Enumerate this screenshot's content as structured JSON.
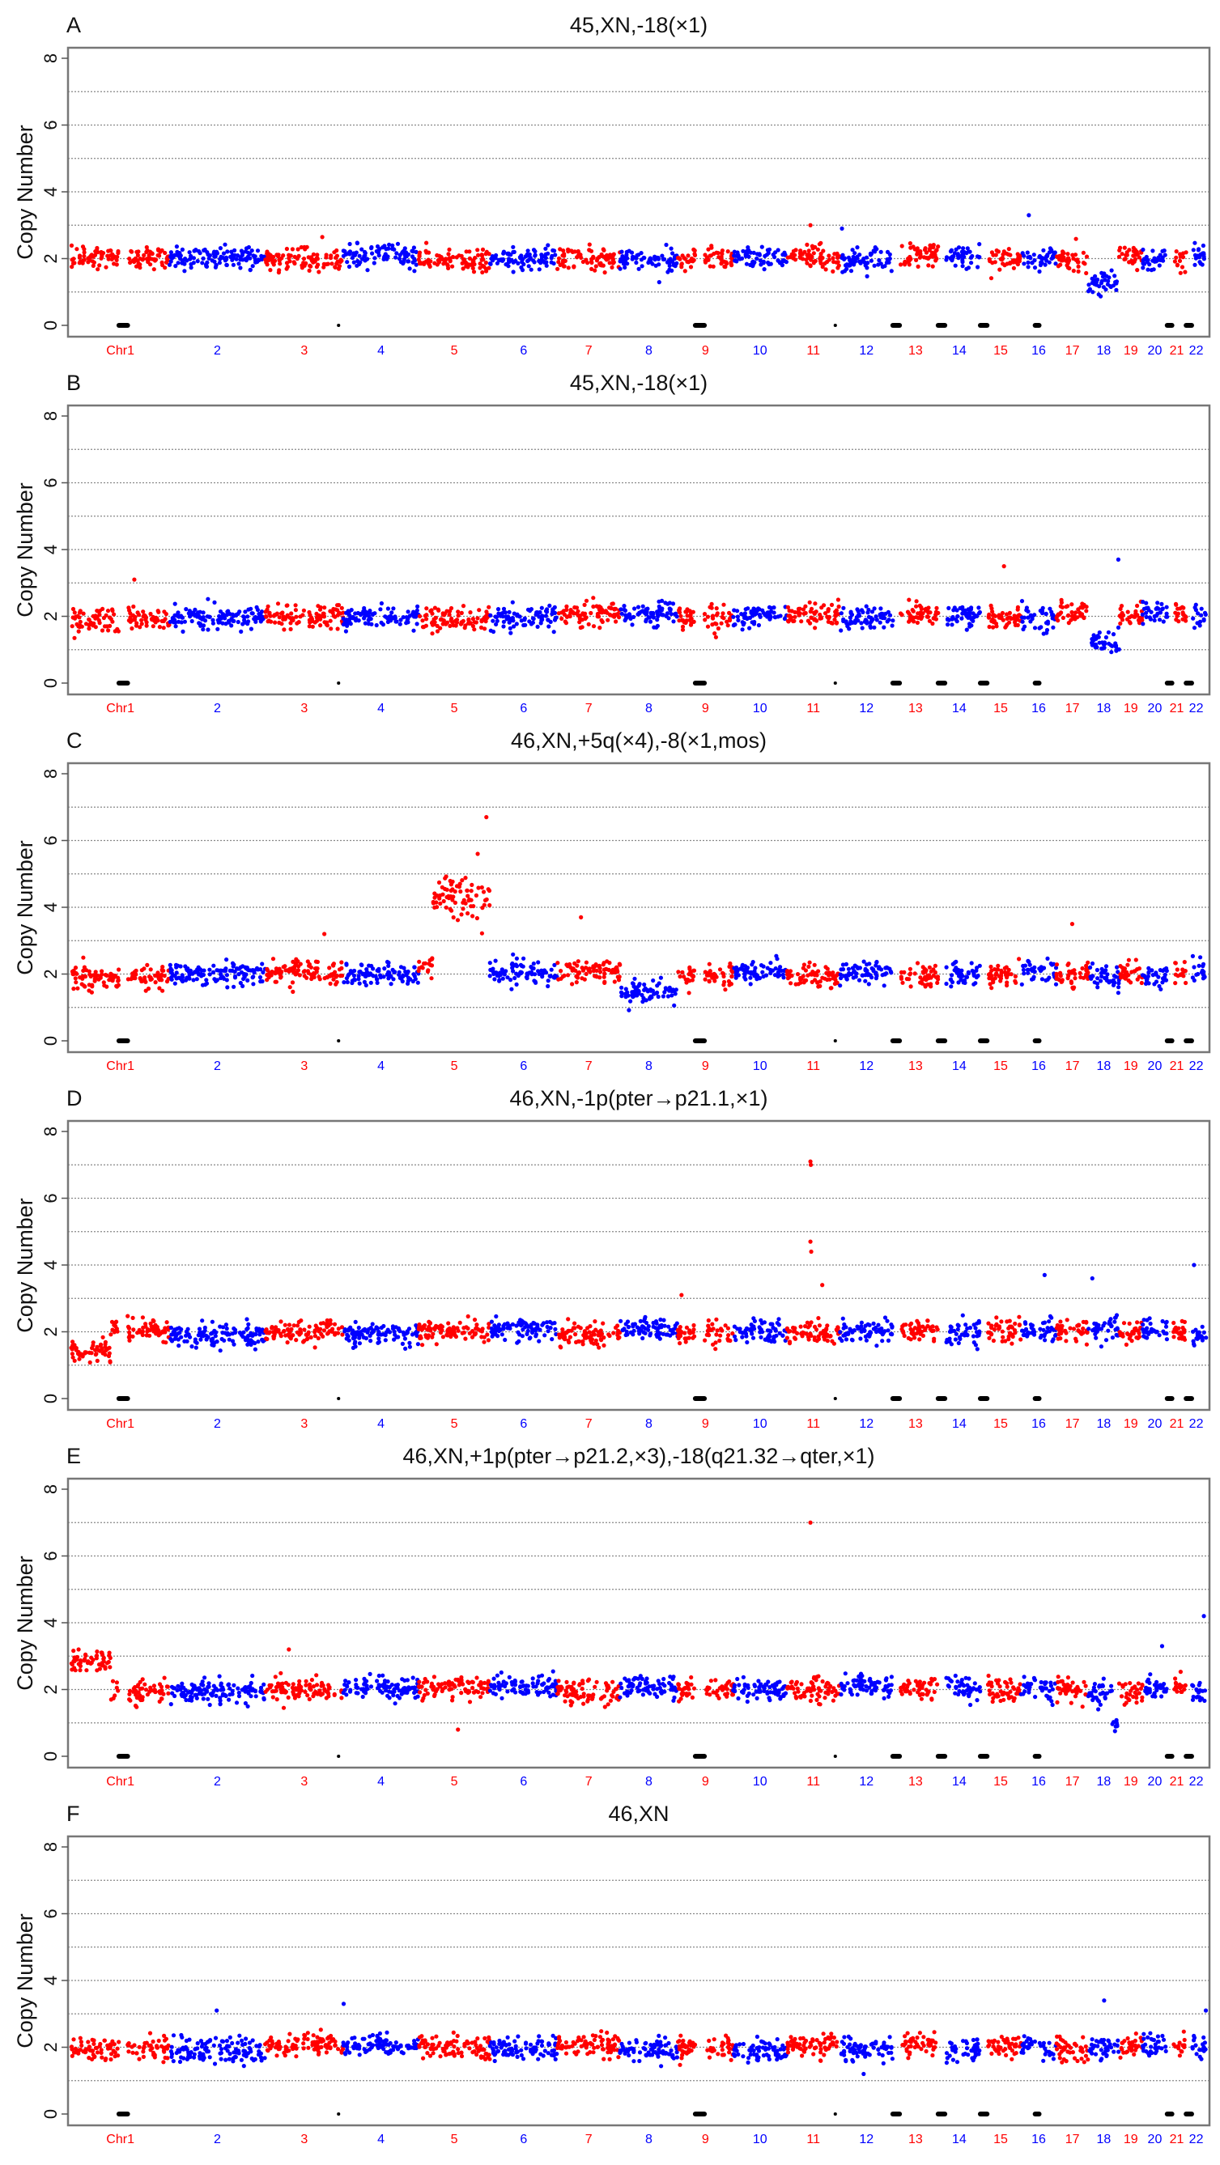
{
  "chart_data": {
    "type": "scatter",
    "ylabel": "Copy Number",
    "yticks": [
      "0",
      "2",
      "4",
      "6",
      "8"
    ],
    "ylim": [
      -0.3,
      8.3
    ],
    "gridlines": [
      1,
      2,
      3,
      4,
      5,
      6,
      7
    ],
    "grid": true,
    "colors": {
      "odd_chromosome": "#ff0000",
      "even_chromosome": "#0000ff",
      "gap_marker": "#000000"
    },
    "chromosomes": [
      {
        "label": "Chr1",
        "size_mb": 249
      },
      {
        "label": "2",
        "size_mb": 243
      },
      {
        "label": "3",
        "size_mb": 198
      },
      {
        "label": "4",
        "size_mb": 191
      },
      {
        "label": "5",
        "size_mb": 181
      },
      {
        "label": "6",
        "size_mb": 171
      },
      {
        "label": "7",
        "size_mb": 159
      },
      {
        "label": "8",
        "size_mb": 146
      },
      {
        "label": "9",
        "size_mb": 141
      },
      {
        "label": "10",
        "size_mb": 136
      },
      {
        "label": "11",
        "size_mb": 135
      },
      {
        "label": "12",
        "size_mb": 134
      },
      {
        "label": "13",
        "size_mb": 115
      },
      {
        "label": "14",
        "size_mb": 107
      },
      {
        "label": "15",
        "size_mb": 103
      },
      {
        "label": "16",
        "size_mb": 90
      },
      {
        "label": "17",
        "size_mb": 81
      },
      {
        "label": "18",
        "size_mb": 78
      },
      {
        "label": "19",
        "size_mb": 59
      },
      {
        "label": "20",
        "size_mb": 63
      },
      {
        "label": "21",
        "size_mb": 48
      },
      {
        "label": "22",
        "size_mb": 51
      }
    ],
    "gap_markers": [
      {
        "chr": 1,
        "start_mb": 121,
        "end_mb": 143
      },
      {
        "chr": 3,
        "start_mb": 186,
        "end_mb": 186
      },
      {
        "chr": 9,
        "start_mb": 45,
        "end_mb": 68
      },
      {
        "chr": 11,
        "start_mb": 123,
        "end_mb": 123
      },
      {
        "chr": 13,
        "start_mb": 0,
        "end_mb": 17
      },
      {
        "chr": 14,
        "start_mb": 0,
        "end_mb": 17
      },
      {
        "chr": 15,
        "start_mb": 0,
        "end_mb": 17
      },
      {
        "chr": 16,
        "start_mb": 36,
        "end_mb": 46
      },
      {
        "chr": 21,
        "start_mb": 0,
        "end_mb": 12
      },
      {
        "chr": 22,
        "start_mb": 0,
        "end_mb": 14
      }
    ],
    "baseline_copy_number": 2,
    "panels": [
      {
        "letter": "A",
        "title": "45,XN,-18(×1)",
        "segments": [
          {
            "chr": 18,
            "start_mb": 0,
            "end_mb": 78,
            "copy_number": 1.2
          }
        ],
        "outliers": [
          {
            "chr": 11,
            "mb": 60,
            "cn": 3.0
          },
          {
            "chr": 16,
            "mb": 20,
            "cn": 3.3
          },
          {
            "chr": 12,
            "mb": 5,
            "cn": 2.9
          }
        ]
      },
      {
        "letter": "B",
        "title": "45,XN,-18(×1)",
        "segments": [
          {
            "chr": 18,
            "start_mb": 0,
            "end_mb": 78,
            "copy_number": 1.2
          }
        ],
        "outliers": [
          {
            "chr": 15,
            "mb": 60,
            "cn": 3.5
          },
          {
            "chr": 18,
            "mb": 76,
            "cn": 3.7
          },
          {
            "chr": 1,
            "mb": 160,
            "cn": 3.1
          }
        ]
      },
      {
        "letter": "C",
        "title": "46,XN,+5q(×4),-8(×1,mos)",
        "segments": [
          {
            "chr": 5,
            "start_mb": 0,
            "end_mb": 35,
            "copy_number": 2.3
          },
          {
            "chr": 5,
            "start_mb": 35,
            "end_mb": 181,
            "copy_number": 4.3
          },
          {
            "chr": 8,
            "start_mb": 0,
            "end_mb": 146,
            "copy_number": 1.45
          }
        ],
        "outliers": [
          {
            "chr": 5,
            "mb": 172,
            "cn": 6.7
          },
          {
            "chr": 5,
            "mb": 150,
            "cn": 5.6
          },
          {
            "chr": 7,
            "mb": 60,
            "cn": 3.7
          },
          {
            "chr": 17,
            "mb": 40,
            "cn": 3.5
          },
          {
            "chr": 3,
            "mb": 150,
            "cn": 3.2
          }
        ]
      },
      {
        "letter": "D",
        "title": "46,XN,-1p(pter→p21.1,×1)",
        "segments": [
          {
            "chr": 1,
            "start_mb": 0,
            "end_mb": 100,
            "copy_number": 1.4
          }
        ],
        "outliers": [
          {
            "chr": 11,
            "mb": 60,
            "cn": 7.1
          },
          {
            "chr": 11,
            "mb": 61,
            "cn": 7.0
          },
          {
            "chr": 11,
            "mb": 60,
            "cn": 4.7
          },
          {
            "chr": 11,
            "mb": 62,
            "cn": 4.4
          },
          {
            "chr": 11,
            "mb": 90,
            "cn": 3.4
          },
          {
            "chr": 22,
            "mb": 20,
            "cn": 4.0
          },
          {
            "chr": 16,
            "mb": 60,
            "cn": 3.7
          },
          {
            "chr": 18,
            "mb": 10,
            "cn": 3.6
          },
          {
            "chr": 9,
            "mb": 10,
            "cn": 3.1
          }
        ]
      },
      {
        "letter": "E",
        "title": "46,XN,+1p(pter→p21.2,×3),-18(q21.32→qter,×1)",
        "segments": [
          {
            "chr": 1,
            "start_mb": 0,
            "end_mb": 100,
            "copy_number": 2.85
          },
          {
            "chr": 18,
            "start_mb": 60,
            "end_mb": 78,
            "copy_number": 1.0
          }
        ],
        "outliers": [
          {
            "chr": 11,
            "mb": 60,
            "cn": 7.0
          },
          {
            "chr": 22,
            "mb": 45,
            "cn": 4.2
          },
          {
            "chr": 20,
            "mb": 50,
            "cn": 3.3
          },
          {
            "chr": 3,
            "mb": 60,
            "cn": 3.2
          },
          {
            "chr": 5,
            "mb": 100,
            "cn": 0.8
          }
        ]
      },
      {
        "letter": "F",
        "title": "46,XN",
        "segments": [],
        "outliers": [
          {
            "chr": 4,
            "mb": 1,
            "cn": 3.3
          },
          {
            "chr": 2,
            "mb": 120,
            "cn": 3.1
          },
          {
            "chr": 18,
            "mb": 40,
            "cn": 3.4
          },
          {
            "chr": 22,
            "mb": 50,
            "cn": 3.1
          },
          {
            "chr": 12,
            "mb": 60,
            "cn": 1.2
          }
        ]
      }
    ]
  }
}
